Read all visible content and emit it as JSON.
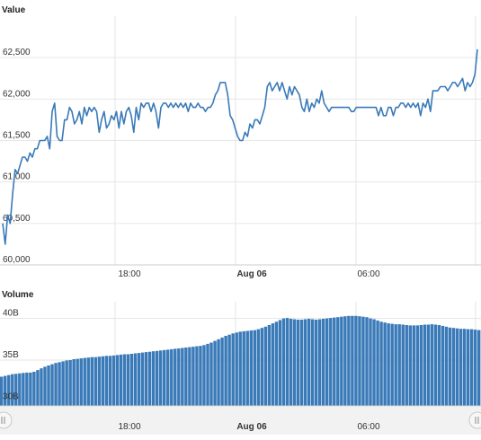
{
  "chart_data": [
    {
      "type": "line",
      "title": "Value",
      "ylim": [
        60000,
        63000
      ],
      "y_ticks": [
        60000,
        60500,
        61000,
        61500,
        62000,
        62500
      ],
      "y_tick_labels": [
        "60,000",
        "60,500",
        "61,000",
        "61,500",
        "62,000",
        "62,500"
      ],
      "x_tick_labels": [
        "18:00",
        "Aug 06",
        "06:00"
      ],
      "grid": true,
      "color": "#3a7ab8",
      "series": [
        {
          "values": [
            60500,
            60250,
            60600,
            60500,
            60850,
            61150,
            61100,
            61200,
            61300,
            61300,
            61250,
            61350,
            61300,
            61400,
            61400,
            61500,
            61500,
            61500,
            61550,
            61400,
            61850,
            61950,
            61550,
            61500,
            61500,
            61750,
            61750,
            61900,
            61850,
            61700,
            61750,
            61850,
            61700,
            61900,
            61800,
            61900,
            61850,
            61900,
            61850,
            61600,
            61750,
            61850,
            61650,
            61700,
            61800,
            61750,
            61850,
            61650,
            61850,
            61700,
            61850,
            61900,
            61800,
            61600,
            61900,
            61750,
            61950,
            61900,
            61950,
            61950,
            61850,
            61950,
            61850,
            61650,
            61900,
            61950,
            61950,
            61900,
            61950,
            61900,
            61950,
            61900,
            61950,
            61900,
            61950,
            61850,
            61950,
            61900,
            61900,
            61950,
            61900,
            61900,
            61850,
            61900,
            61900,
            61950,
            62050,
            62100,
            62200,
            62200,
            62200,
            62050,
            61800,
            61750,
            61650,
            61550,
            61500,
            61500,
            61600,
            61550,
            61700,
            61650,
            61750,
            61750,
            61700,
            61800,
            61900,
            62150,
            62200,
            62100,
            62150,
            62200,
            62100,
            62200,
            62100,
            62000,
            62150,
            62050,
            62150,
            62100,
            62050,
            61900,
            61850,
            62000,
            61850,
            61950,
            61900,
            62000,
            61950,
            62100,
            61950,
            61900,
            61850,
            61900,
            61900,
            61900,
            61900,
            61900,
            61900,
            61900,
            61900,
            61850,
            61850,
            61900,
            61900,
            61900,
            61900,
            61900,
            61900,
            61900,
            61900,
            61900,
            61800,
            61900,
            61800,
            61800,
            61900,
            61900,
            61800,
            61900,
            61900,
            61950,
            61950,
            61900,
            61950,
            61900,
            61950,
            61900,
            61950,
            61800,
            61950,
            61900,
            62000,
            61850,
            62100,
            62100,
            62100,
            62150,
            62150,
            62150,
            62100,
            62150,
            62200,
            62200,
            62150,
            62200,
            62250,
            62100,
            62200,
            62150,
            62200,
            62300,
            62600
          ]
        }
      ]
    },
    {
      "type": "bar",
      "title": "Volume",
      "ylim": [
        29500000000,
        42000000000
      ],
      "y_ticks": [
        30000000000,
        35000000000,
        40000000000
      ],
      "y_tick_labels": [
        "30B",
        "35B",
        "40B"
      ],
      "x_tick_labels": [
        "18:00",
        "Aug 06",
        "06:00"
      ],
      "grid": true,
      "color": "#3a7ab8",
      "series": [
        {
          "values": [
            33000000000,
            33100000000,
            33200000000,
            33300000000,
            33350000000,
            33400000000,
            33450000000,
            33500000000,
            33500000000,
            33600000000,
            33800000000,
            34000000000,
            34200000000,
            34350000000,
            34500000000,
            34650000000,
            34750000000,
            34850000000,
            34950000000,
            35000000000,
            35100000000,
            35150000000,
            35200000000,
            35250000000,
            35300000000,
            35350000000,
            35350000000,
            35400000000,
            35450000000,
            35500000000,
            35500000000,
            35550000000,
            35600000000,
            35650000000,
            35700000000,
            35700000000,
            35750000000,
            35800000000,
            35850000000,
            35900000000,
            35950000000,
            36000000000,
            36050000000,
            36100000000,
            36150000000,
            36200000000,
            36250000000,
            36300000000,
            36350000000,
            36400000000,
            36450000000,
            36500000000,
            36550000000,
            36600000000,
            36650000000,
            36700000000,
            36800000000,
            36950000000,
            37100000000,
            37300000000,
            37500000000,
            37700000000,
            37900000000,
            38050000000,
            38200000000,
            38300000000,
            38400000000,
            38450000000,
            38500000000,
            38550000000,
            38600000000,
            38700000000,
            38850000000,
            39000000000,
            39200000000,
            39400000000,
            39600000000,
            39800000000,
            40000000000,
            40050000000,
            39950000000,
            39900000000,
            39850000000,
            39850000000,
            39900000000,
            39950000000,
            39900000000,
            39850000000,
            39900000000,
            39950000000,
            40000000000,
            40050000000,
            40100000000,
            40150000000,
            40200000000,
            40250000000,
            40300000000,
            40300000000,
            40300000000,
            40250000000,
            40200000000,
            40150000000,
            40000000000,
            39900000000,
            39750000000,
            39600000000,
            39500000000,
            39400000000,
            39350000000,
            39300000000,
            39300000000,
            39250000000,
            39200000000,
            39150000000,
            39150000000,
            39150000000,
            39200000000,
            39250000000,
            39250000000,
            39300000000,
            39250000000,
            39200000000,
            39100000000,
            39000000000,
            38900000000,
            38850000000,
            38800000000,
            38750000000,
            38750000000,
            38700000000,
            38700000000,
            38650000000,
            38600000000
          ]
        }
      ]
    }
  ]
}
